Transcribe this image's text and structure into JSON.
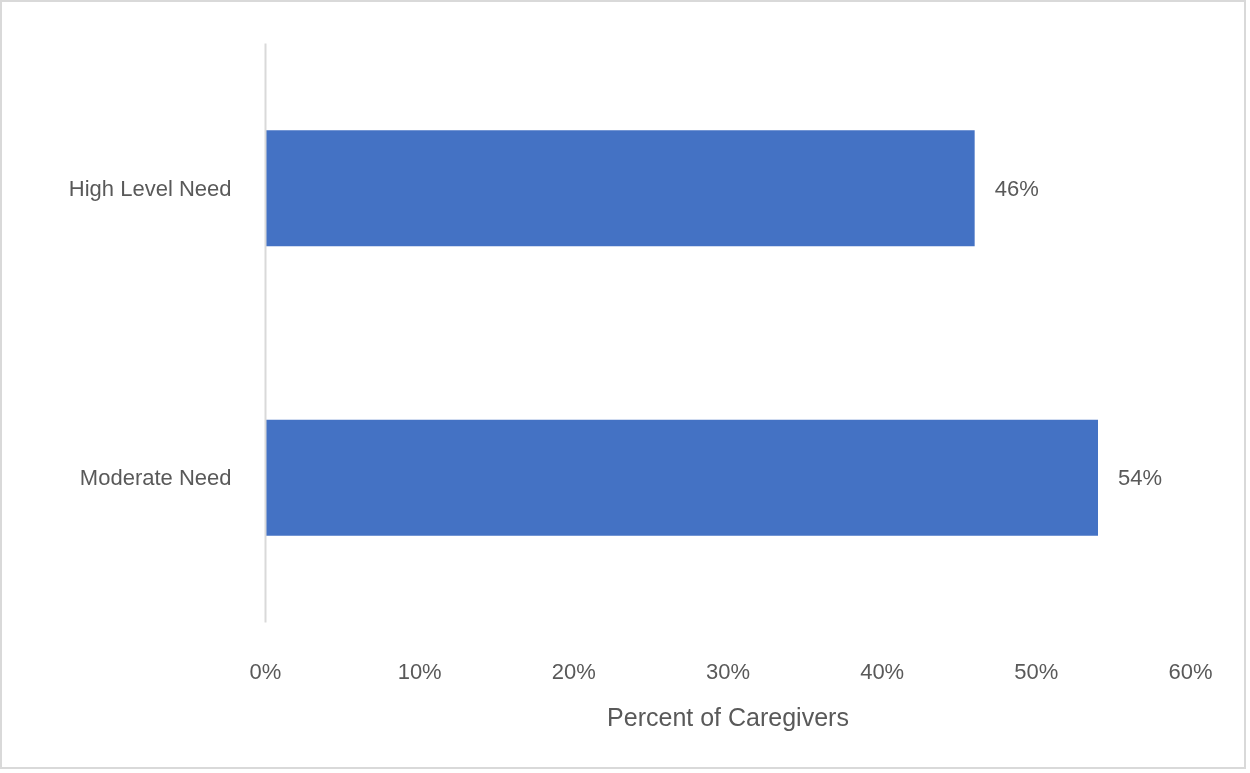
{
  "chart_data": {
    "type": "bar",
    "orientation": "horizontal",
    "categories": [
      "High Level Need",
      "Moderate Need"
    ],
    "values": [
      46,
      54
    ],
    "color": "#4472c4",
    "value_labels": [
      "46%",
      "54%"
    ],
    "xlabel": "Percent of Caregivers",
    "xlim": [
      0,
      60
    ],
    "xticks": [
      {
        "value": 0,
        "label": "0%"
      },
      {
        "value": 10,
        "label": "10%"
      },
      {
        "value": 20,
        "label": "20%"
      },
      {
        "value": 30,
        "label": "30%"
      },
      {
        "value": 40,
        "label": "40%"
      },
      {
        "value": 50,
        "label": "50%"
      },
      {
        "value": 60,
        "label": "60%"
      }
    ]
  }
}
